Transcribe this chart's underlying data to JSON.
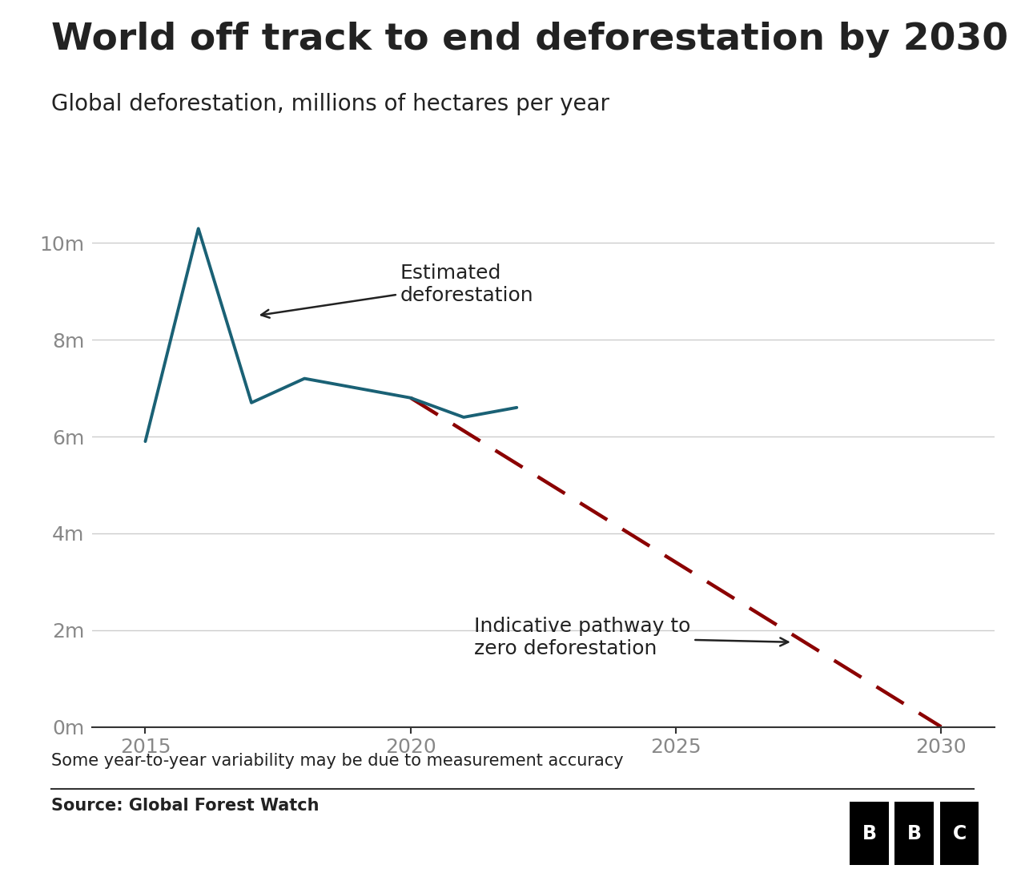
{
  "title": "World off track to end deforestation by 2030",
  "subtitle": "Global deforestation, millions of hectares per year",
  "footnote": "Some year-to-year variability may be due to measurement accuracy",
  "source": "Source: Global Forest Watch",
  "deforestation_years": [
    2015,
    2016,
    2017,
    2018,
    2019,
    2020,
    2021,
    2022
  ],
  "deforestation_values": [
    5.9,
    10.3,
    6.7,
    7.2,
    7.0,
    6.8,
    6.4,
    6.6
  ],
  "pathway_years": [
    2020,
    2030
  ],
  "pathway_values": [
    6.8,
    0.0
  ],
  "line_color": "#1a6175",
  "pathway_color": "#8b0000",
  "bg_color": "#ffffff",
  "grid_color": "#cccccc",
  "text_color": "#222222",
  "yticks": [
    0,
    2,
    4,
    6,
    8,
    10
  ],
  "ytick_labels": [
    "0m",
    "2m",
    "4m",
    "6m",
    "8m",
    "10m"
  ],
  "xticks": [
    2015,
    2020,
    2025,
    2030
  ],
  "xlim": [
    2014.0,
    2031.0
  ],
  "ylim": [
    0,
    11.2
  ],
  "title_fontsize": 34,
  "subtitle_fontsize": 20,
  "tick_fontsize": 18,
  "annotation_fontsize": 18,
  "footnote_fontsize": 15,
  "source_fontsize": 15
}
